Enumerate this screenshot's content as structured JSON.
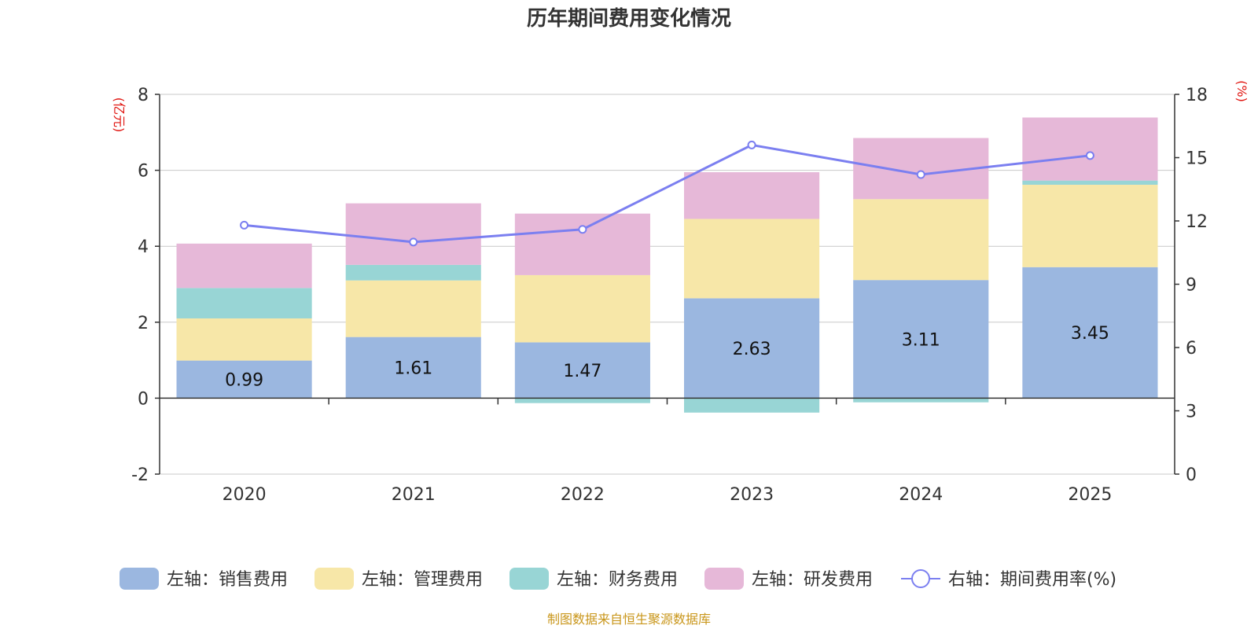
{
  "chart_data": {
    "type": "bar",
    "stacked": true,
    "title": "历年期间费用变化情况",
    "categories": [
      "2020",
      "2021",
      "2022",
      "2023",
      "2024",
      "2025"
    ],
    "left_axis": {
      "unit": "(亿元)",
      "ylim": [
        -2,
        8
      ],
      "ticks": [
        "-2",
        "0",
        "2",
        "4",
        "6",
        "8"
      ]
    },
    "right_axis": {
      "unit": "(%)",
      "ylim": [
        0,
        18
      ],
      "ticks": [
        "0",
        "3",
        "6",
        "9",
        "12",
        "15",
        "18"
      ]
    },
    "series": [
      {
        "name": "左轴：销售费用",
        "axis": "left",
        "color": "#9bb7e0",
        "values": [
          0.99,
          1.61,
          1.47,
          2.63,
          3.11,
          3.45
        ],
        "labels": [
          "0.99",
          "1.61",
          "1.47",
          "2.63",
          "3.11",
          "3.45"
        ]
      },
      {
        "name": "左轴：管理费用",
        "axis": "left",
        "color": "#f7e7a8",
        "values": [
          1.11,
          1.49,
          1.77,
          2.09,
          2.13,
          2.17
        ]
      },
      {
        "name": "左轴：财务费用",
        "axis": "left",
        "color": "#98d5d5",
        "values": [
          0.8,
          0.41,
          -0.13,
          -0.38,
          -0.11,
          0.11
        ]
      },
      {
        "name": "左轴：研发费用",
        "axis": "left",
        "color": "#e6b8d8",
        "values": [
          1.17,
          1.62,
          1.62,
          1.23,
          1.61,
          1.66
        ]
      },
      {
        "name": "右轴：期间费用率(%)",
        "axis": "right",
        "type": "line",
        "color": "#7b7ff0",
        "values": [
          11.8,
          11.0,
          11.6,
          15.6,
          14.2,
          15.1
        ]
      }
    ],
    "grid": true,
    "legend_position": "bottom"
  },
  "source": "制图数据来自恒生聚源数据库"
}
